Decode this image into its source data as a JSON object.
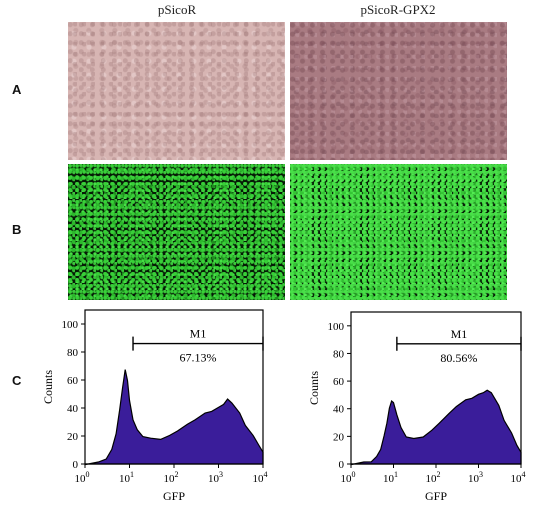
{
  "columns": [
    "pSicoR",
    "pSicoR-GPX2"
  ],
  "row_labels": {
    "a": "A",
    "b": "B",
    "c": "C"
  },
  "colors": {
    "histogram_fill": "#3a1d9a",
    "histogram_outline": "#000000",
    "brightfield_left": "#d7b5b3",
    "brightfield_right": "#a97b82",
    "gfp_green": "#38d038"
  },
  "chart_data": [
    {
      "type": "area",
      "title": "",
      "xlabel": "GFP",
      "ylabel": "Counts",
      "xscale": "log",
      "xlim": [
        1,
        10000
      ],
      "ylim": [
        0,
        110
      ],
      "yticks": [
        0,
        20,
        40,
        60,
        80,
        100
      ],
      "xtick_labels": [
        "10",
        "10",
        "10",
        "10",
        "10"
      ],
      "xtick_exponents": [
        "0",
        "1",
        "2",
        "3",
        "4"
      ],
      "gate": {
        "label": "M1",
        "start": 12,
        "end": 10000,
        "percent": "67.13%"
      },
      "series": [
        {
          "x": [
            1,
            2,
            3,
            4,
            5,
            6,
            7,
            8,
            9,
            10,
            12,
            15,
            20,
            30,
            50,
            80,
            120,
            200,
            300,
            500,
            700,
            1000,
            1300,
            1600,
            2000,
            3000,
            4000,
            6000,
            8000,
            10000
          ],
          "values": [
            0,
            1,
            4,
            10,
            22,
            38,
            55,
            67,
            60,
            45,
            32,
            24,
            20,
            18,
            18,
            20,
            24,
            28,
            32,
            36,
            38,
            40,
            43,
            46,
            44,
            36,
            28,
            20,
            14,
            8
          ]
        }
      ]
    },
    {
      "type": "area",
      "title": "",
      "xlabel": "GFP",
      "ylabel": "Counts",
      "xscale": "log",
      "xlim": [
        1,
        10000
      ],
      "ylim": [
        0,
        110
      ],
      "yticks": [
        0,
        20,
        40,
        60,
        80,
        100
      ],
      "xtick_labels": [
        "10",
        "10",
        "10",
        "10",
        "10"
      ],
      "xtick_exponents": [
        "0",
        "1",
        "2",
        "3",
        "4"
      ],
      "gate": {
        "label": "M1",
        "start": 12,
        "end": 10000,
        "percent": "80.56%"
      },
      "series": [
        {
          "x": [
            1,
            2,
            3,
            4,
            5,
            6,
            7,
            8,
            9,
            10,
            12,
            15,
            20,
            30,
            50,
            80,
            120,
            200,
            300,
            500,
            700,
            1000,
            1300,
            1600,
            2000,
            3000,
            4000,
            6000,
            8000,
            10000
          ],
          "values": [
            0,
            1,
            2,
            5,
            11,
            20,
            30,
            40,
            46,
            44,
            36,
            26,
            20,
            18,
            20,
            24,
            30,
            36,
            42,
            46,
            48,
            50,
            52,
            53,
            52,
            42,
            32,
            22,
            14,
            8
          ]
        }
      ]
    }
  ]
}
